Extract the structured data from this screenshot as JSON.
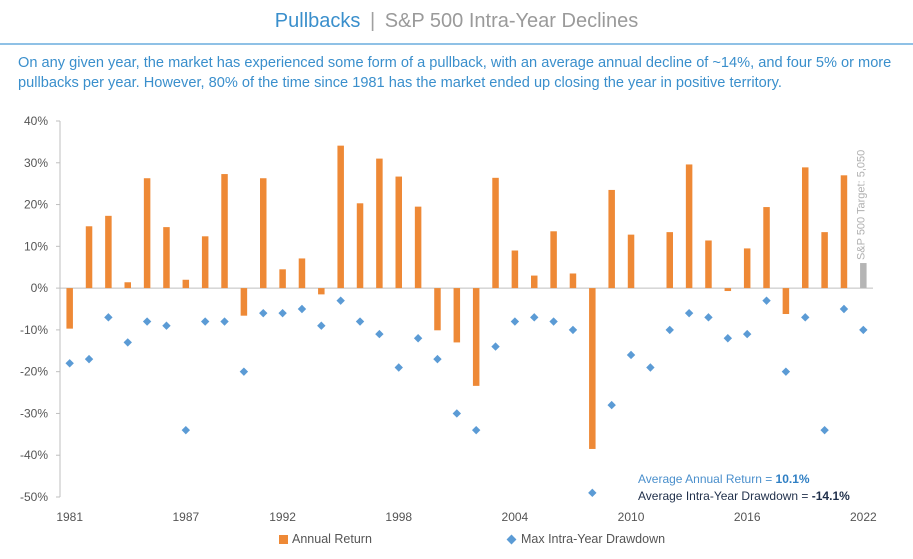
{
  "header": {
    "title": "Pullbacks",
    "separator": "|",
    "subtitle": "S&P 500 Intra-Year Declines"
  },
  "description": "On any given year, the market has experienced some form of a pullback, with an average annual decline of ~14%, and four 5% or more pullbacks per year. However, 80% of the time since 1981 has the market ended up closing the year in positive territory.",
  "annotations": {
    "avg_return_label": "Average Annual Return = ",
    "avg_return_value": "10.1%",
    "avg_drawdown_label": "Average Intra-Year Drawdown = ",
    "avg_drawdown_value": "-14.1%"
  },
  "legend": {
    "annual_return": "Annual Return",
    "max_drawdown": "Max Intra-Year Drawdown"
  },
  "colors": {
    "bar": "#ee8936",
    "target_bar": "#b5b5b5",
    "diamond": "#5b9bd5",
    "axis": "#bfbfbf",
    "text": "#555555"
  },
  "chart_data": {
    "type": "bar",
    "title": "S&P 500 Intra-Year Declines",
    "xlabel": "",
    "ylabel": "",
    "ylim": [
      -50,
      40
    ],
    "yticks": [
      40,
      30,
      20,
      10,
      0,
      -10,
      -20,
      -30,
      -40,
      -50
    ],
    "ytick_labels": [
      "40%",
      "30%",
      "20%",
      "10%",
      "0%",
      "-10%",
      "-20%",
      "-30%",
      "-40%",
      "-50%"
    ],
    "x": [
      1981,
      1982,
      1983,
      1984,
      1985,
      1986,
      1987,
      1988,
      1989,
      1990,
      1991,
      1992,
      1993,
      1994,
      1995,
      1996,
      1997,
      1998,
      1999,
      2000,
      2001,
      2002,
      2003,
      2004,
      2005,
      2006,
      2007,
      2008,
      2009,
      2010,
      2011,
      2012,
      2013,
      2014,
      2015,
      2016,
      2017,
      2018,
      2019,
      2020,
      2021,
      2022
    ],
    "xtick_labels": [
      "1981",
      "1987",
      "1992",
      "1998",
      "2004",
      "2010",
      "2016",
      "2022"
    ],
    "series": [
      {
        "name": "Annual Return",
        "kind": "bar",
        "values": [
          -9.7,
          14.8,
          17.3,
          1.4,
          26.3,
          14.6,
          2.0,
          12.4,
          27.3,
          -6.6,
          26.3,
          4.5,
          7.1,
          -1.5,
          34.1,
          20.3,
          31.0,
          26.7,
          19.5,
          -10.1,
          -13.0,
          -23.4,
          26.4,
          9.0,
          3.0,
          13.6,
          3.5,
          -38.5,
          23.5,
          12.8,
          0.0,
          13.4,
          29.6,
          11.4,
          -0.7,
          9.5,
          19.4,
          -6.2,
          28.9,
          13.4,
          27.0,
          null
        ]
      },
      {
        "name": "Max Intra-Year Drawdown",
        "kind": "scatter",
        "values": [
          -18,
          -17,
          -7,
          -13,
          -8,
          -9,
          -34,
          -8,
          -8,
          -20,
          -6,
          -6,
          -5,
          -9,
          -3,
          -8,
          -11,
          -19,
          -12,
          -17,
          -30,
          -34,
          -14,
          -8,
          -7,
          -8,
          -10,
          -49,
          -28,
          -16,
          -19,
          -10,
          -6,
          -7,
          -12,
          -11,
          -3,
          -20,
          -7,
          -34,
          -5,
          -10
        ]
      }
    ],
    "target_bar": {
      "label": "S&P 500 Target: 5,050",
      "value": 6.0,
      "x": 2022
    }
  }
}
